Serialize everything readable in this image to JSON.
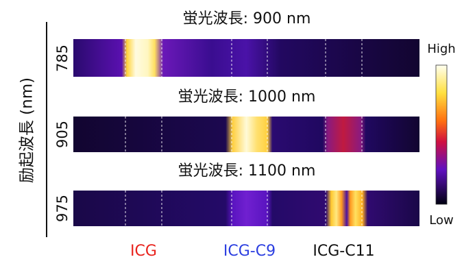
{
  "panels": [
    {
      "title": "蛍光波長: 900 nm",
      "excitation": "785"
    },
    {
      "title": "蛍光波長: 1000 nm",
      "excitation": "905"
    },
    {
      "title": "蛍光波長: 1100 nm",
      "excitation": "975"
    }
  ],
  "y_axis_label": "励起波長 (nm)",
  "colorbar": {
    "high": "High",
    "low": "Low"
  },
  "samples": [
    {
      "label": "ICG",
      "color": "#e8211b"
    },
    {
      "label": "ICG-C9",
      "color": "#2b3ee0"
    },
    {
      "label": "ICG-C11",
      "color": "#111111"
    }
  ]
}
